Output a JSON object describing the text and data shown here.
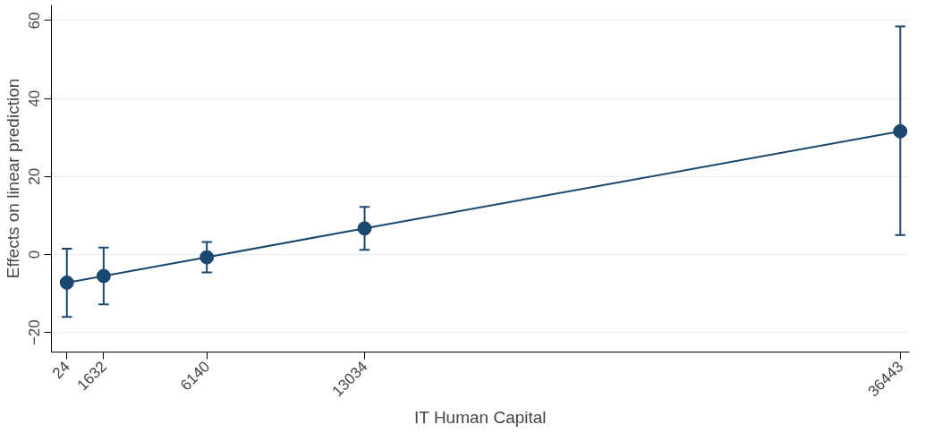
{
  "chart_data": {
    "type": "line",
    "xlabel": "IT Human Capital",
    "ylabel": "Effects on linear prediction",
    "x": [
      24,
      1632,
      6140,
      13034,
      36443
    ],
    "series": [
      {
        "color": "#1a476f",
        "values": [
          -7.2,
          -5.5,
          -0.7,
          6.7,
          31.6
        ],
        "errors": [
          [
            -16,
            1.5
          ],
          [
            -12.8,
            1.8
          ],
          [
            -4.6,
            3.2
          ],
          [
            1.2,
            12.2
          ],
          [
            5,
            58.5
          ]
        ]
      }
    ],
    "xlim": [
      -650,
      36840
    ],
    "xticks": [
      24,
      1632,
      6140,
      13034,
      36443
    ],
    "ylim": [
      -25,
      64
    ],
    "yticks": [
      -20,
      0,
      20,
      40,
      60
    ],
    "grid": "y",
    "marker": "circle",
    "line_style": "solid"
  }
}
